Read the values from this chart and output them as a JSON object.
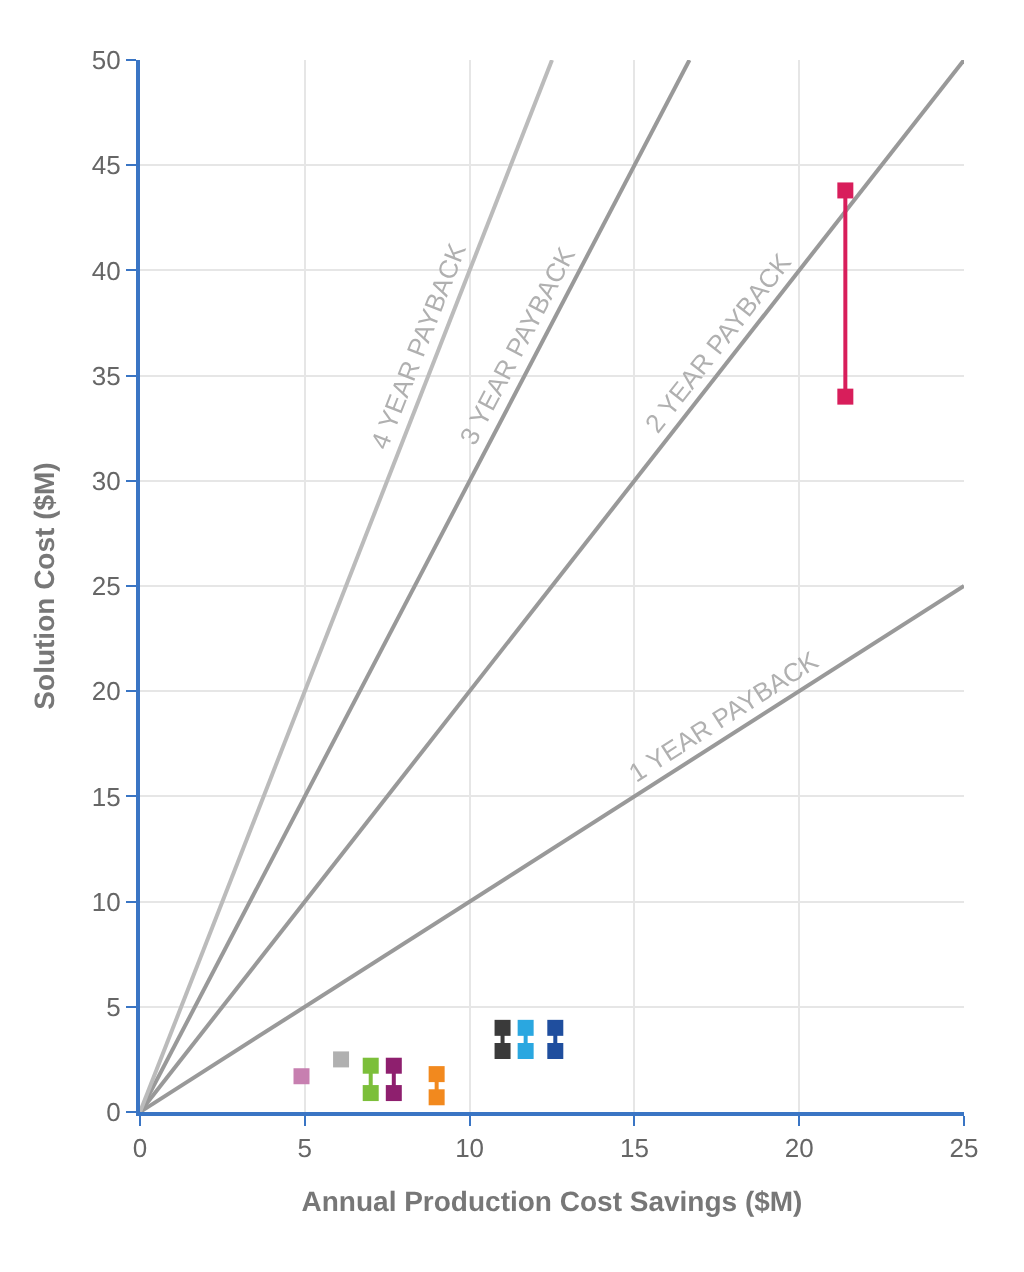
{
  "chart_data": {
    "type": "line",
    "xlabel": "Annual Production Cost Savings ($M)",
    "ylabel": "Solution Cost ($M)",
    "xlim": [
      0,
      25
    ],
    "xticks": [
      0,
      5,
      10,
      15,
      20,
      25
    ],
    "ylim": [
      0,
      50
    ],
    "yticks": [
      0,
      5,
      10,
      15,
      20,
      25,
      30,
      35,
      40,
      45,
      50
    ],
    "grid": true,
    "legend": false,
    "marker": "square",
    "line_style": "solid",
    "series": [
      {
        "type": "line",
        "name": "1 YEAR PAYBACK",
        "marker": "none",
        "color": "#999999",
        "x": [
          0,
          25
        ],
        "values": [
          0,
          25
        ]
      },
      {
        "type": "line",
        "name": "2 YEAR PAYBACK",
        "marker": "none",
        "color": "#999999",
        "x": [
          0,
          25
        ],
        "values": [
          0,
          50
        ]
      },
      {
        "type": "line",
        "name": "3 YEAR PAYBACK",
        "marker": "none",
        "color": "#999999",
        "x": [
          0,
          16.67
        ],
        "values": [
          0,
          50
        ]
      },
      {
        "type": "line",
        "name": "4 YEAR PAYBACK",
        "marker": "none",
        "color": "#bbbbbb",
        "x": [
          0,
          12.5
        ],
        "values": [
          0,
          50
        ]
      },
      {
        "color": "#c77fb0",
        "x": [
          4.9
        ],
        "values": [
          1.7
        ]
      },
      {
        "color": "#b0b0b0",
        "x": [
          6.1
        ],
        "values": [
          2.5
        ]
      },
      {
        "color": "#7cbf3a",
        "x": [
          7.0,
          7.0
        ],
        "values": [
          0.9,
          2.2
        ]
      },
      {
        "color": "#8e1f6e",
        "x": [
          7.7,
          7.7
        ],
        "values": [
          0.9,
          2.2
        ]
      },
      {
        "color": "#f2891e",
        "x": [
          9.0,
          9.0
        ],
        "values": [
          0.7,
          1.8
        ]
      },
      {
        "color": "#3a3a3a",
        "x": [
          11.0,
          11.0
        ],
        "values": [
          2.9,
          4.0
        ]
      },
      {
        "color": "#2aa7e0",
        "x": [
          11.7,
          11.7
        ],
        "values": [
          2.9,
          4.0
        ]
      },
      {
        "color": "#1f4e9e",
        "x": [
          12.6,
          12.6
        ],
        "values": [
          2.9,
          4.0
        ]
      },
      {
        "color": "#d81e5b",
        "x": [
          21.4,
          21.4
        ],
        "values": [
          34.0,
          43.8
        ]
      }
    ]
  }
}
